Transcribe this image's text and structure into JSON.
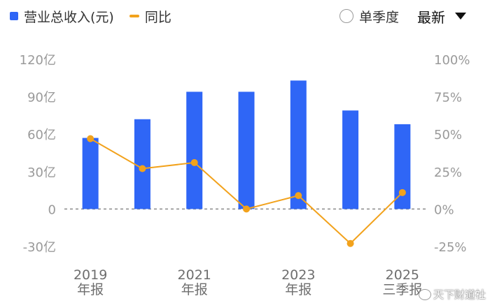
{
  "legend": {
    "revenue_label": "营业总收入(元)",
    "yoy_label": "同比"
  },
  "controls": {
    "quarterly_label": "单季度",
    "sort_label": "最新"
  },
  "watermark": "天下财道社",
  "colors": {
    "bar": "#2f66f6",
    "line": "#f2a21c",
    "axis_text": "#9a9a9a"
  },
  "chart_data": {
    "type": "bar",
    "categories": [
      "2019年报",
      "2020年报",
      "2021年报",
      "2022年报",
      "2023年报",
      "2024年报",
      "2025三季报"
    ],
    "x_tick_labels": [
      {
        "line1": "2019",
        "line2": "年报"
      },
      {
        "line1": "",
        "line2": ""
      },
      {
        "line1": "2021",
        "line2": "年报"
      },
      {
        "line1": "",
        "line2": ""
      },
      {
        "line1": "2023",
        "line2": "年报"
      },
      {
        "line1": "",
        "line2": ""
      },
      {
        "line1": "2025",
        "line2": "三季报"
      }
    ],
    "series": [
      {
        "name": "营业总收入(元)",
        "type": "bar",
        "axis": "left",
        "unit": "亿",
        "values": [
          57,
          72,
          94,
          94,
          103,
          79,
          68
        ]
      },
      {
        "name": "同比",
        "type": "line",
        "axis": "right",
        "unit": "%",
        "values": [
          47,
          27,
          31,
          0,
          9,
          -23,
          11
        ]
      }
    ],
    "y_left": {
      "ylim": [
        -30,
        120
      ],
      "ticks": [
        "-30亿",
        "0",
        "30亿",
        "60亿",
        "90亿",
        "120亿"
      ]
    },
    "y_right": {
      "ylim": [
        -25,
        100
      ],
      "ticks": [
        "-25%",
        "0%",
        "25%",
        "50%",
        "75%",
        "100%"
      ]
    },
    "zero_line": "dashed",
    "grid": false
  }
}
